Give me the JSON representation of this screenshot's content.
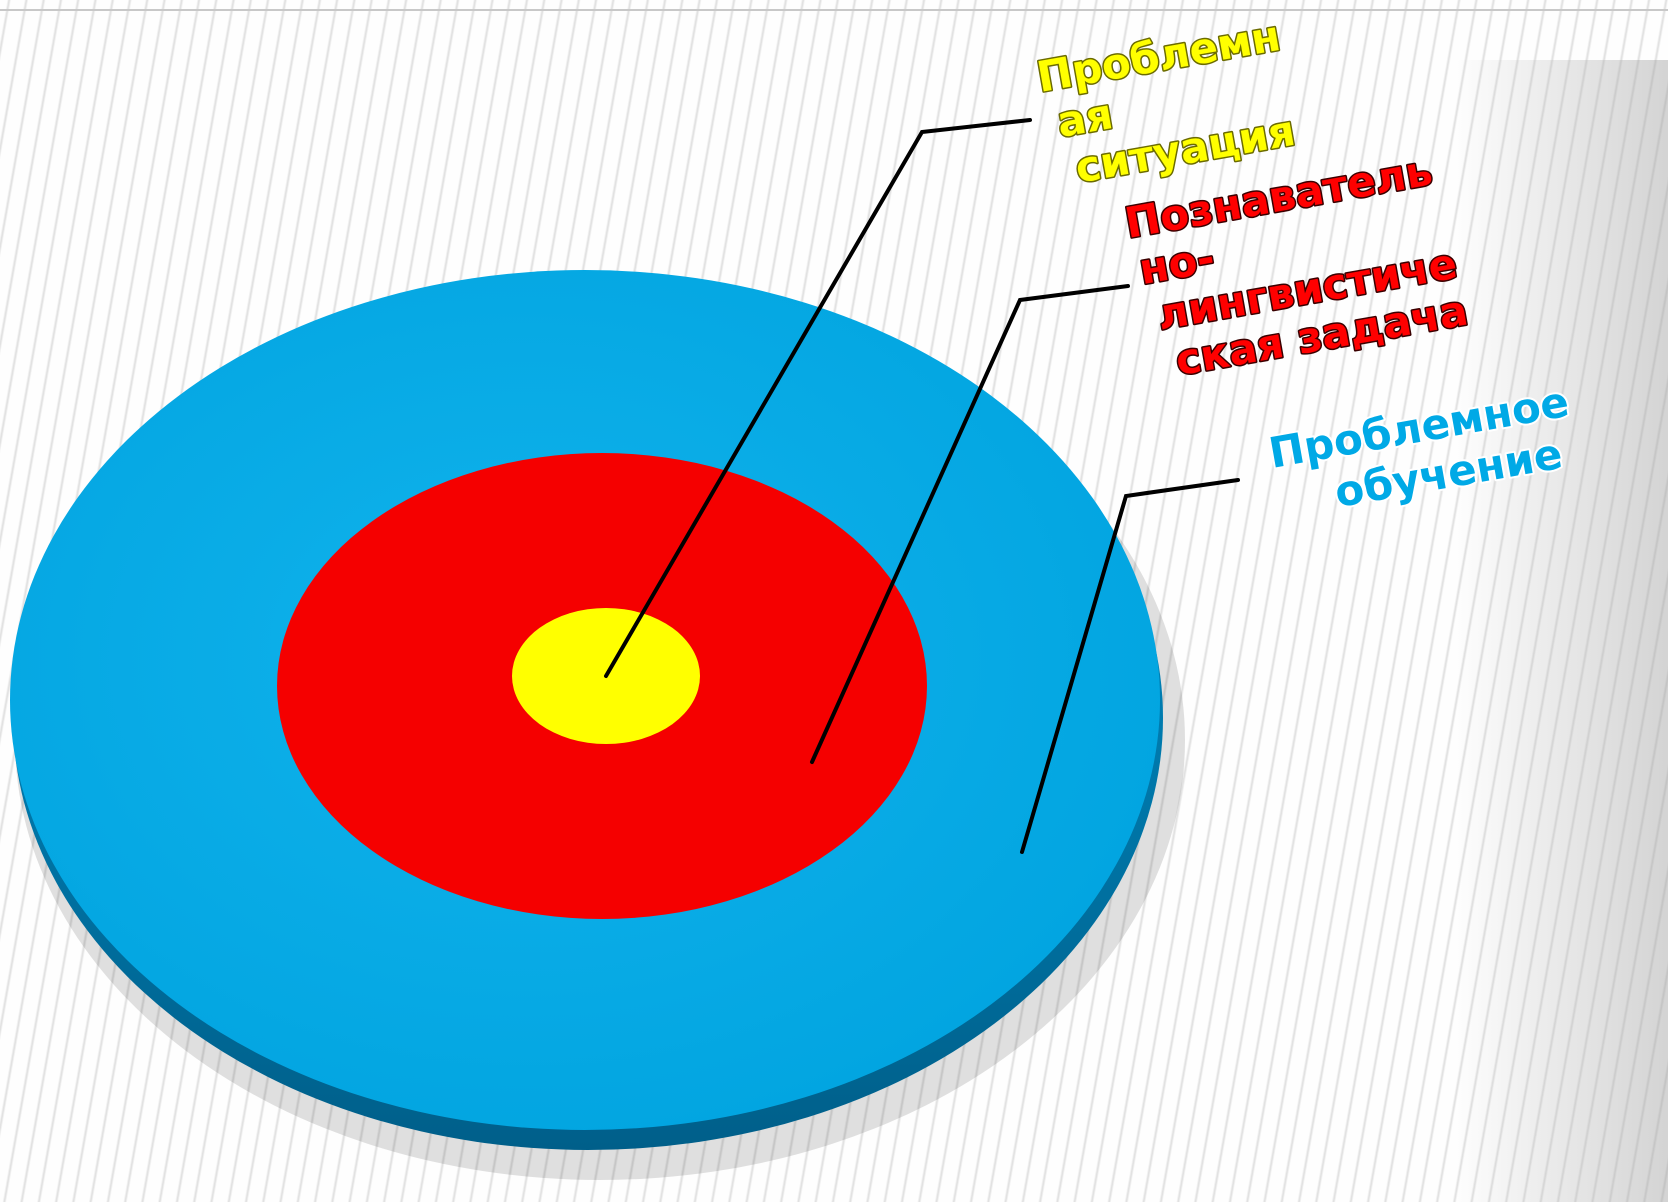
{
  "colors": {
    "outer_ring": "#00a9e6",
    "outer_ring_edge": "#0080b4",
    "middle_ring": "#ff0000",
    "center": "#ffff00",
    "leader_line": "#000000"
  },
  "labels": {
    "center": [
      "Проблемн",
      "ая",
      "ситуация"
    ],
    "middle": [
      "Познаватель",
      "но-",
      "лингвистиче",
      "ская задача"
    ],
    "outer": [
      "Проблемное",
      "обучение"
    ]
  }
}
